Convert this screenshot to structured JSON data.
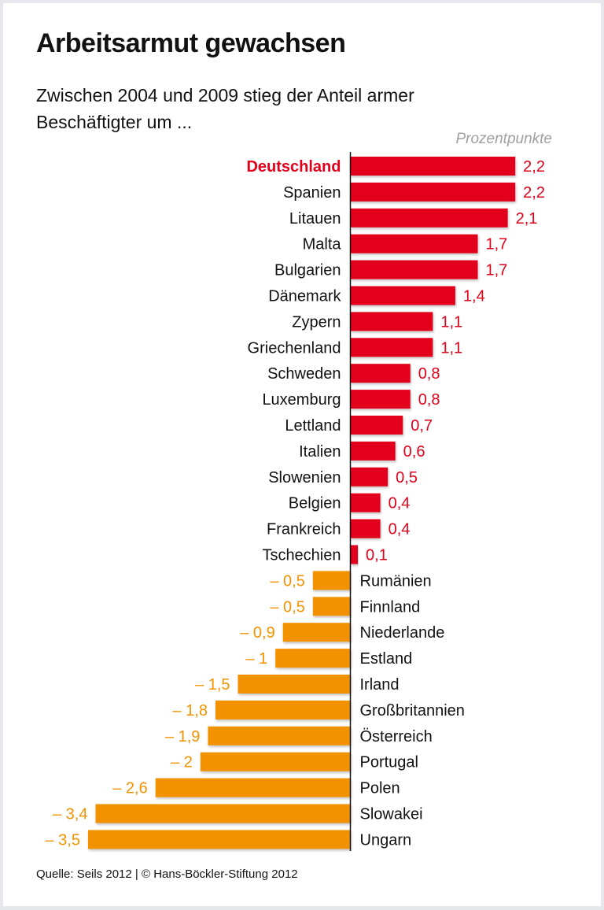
{
  "chart_data": {
    "type": "bar",
    "orientation": "horizontal",
    "title": "Arbeitsarmut gewachsen",
    "subtitle": "Zwischen 2004 und 2009 stieg der Anteil armer Beschäftigter um ...",
    "unit": "Prozentpunkte",
    "categories": [
      "Deutschland",
      "Spanien",
      "Litauen",
      "Malta",
      "Bulgarien",
      "Dänemark",
      "Zypern",
      "Griechenland",
      "Schweden",
      "Luxemburg",
      "Lettland",
      "Italien",
      "Slowenien",
      "Belgien",
      "Frankreich",
      "Tschechien",
      "Rumänien",
      "Finnland",
      "Niederlande",
      "Estland",
      "Irland",
      "Großbritannien",
      "Österreich",
      "Portugal",
      "Polen",
      "Slowakei",
      "Ungarn"
    ],
    "values": [
      2.2,
      2.2,
      2.1,
      1.7,
      1.7,
      1.4,
      1.1,
      1.1,
      0.8,
      0.8,
      0.7,
      0.6,
      0.5,
      0.4,
      0.4,
      0.1,
      -0.5,
      -0.5,
      -0.9,
      -1,
      -1.5,
      -1.8,
      -1.9,
      -2,
      -2.6,
      -3.4,
      -3.5
    ],
    "value_labels": [
      "2,2",
      "2,2",
      "2,1",
      "1,7",
      "1,7",
      "1,4",
      "1,1",
      "1,1",
      "0,8",
      "0,8",
      "0,7",
      "0,6",
      "0,5",
      "0,4",
      "0,4",
      "0,1",
      "– 0,5",
      "– 0,5",
      "– 0,9",
      "– 1",
      "– 1,5",
      "– 1,8",
      "– 1,9",
      "– 2",
      "– 2,6",
      "– 3,4",
      "– 3,5"
    ],
    "highlight": "Deutschland",
    "colors": {
      "positive": "#e2001a",
      "negative": "#f39200",
      "highlight_label": "#e2001a"
    },
    "grid": false,
    "legend": "none"
  },
  "source": "Quelle: Seils 2012 | © Hans-Böckler-Stiftung 2012"
}
